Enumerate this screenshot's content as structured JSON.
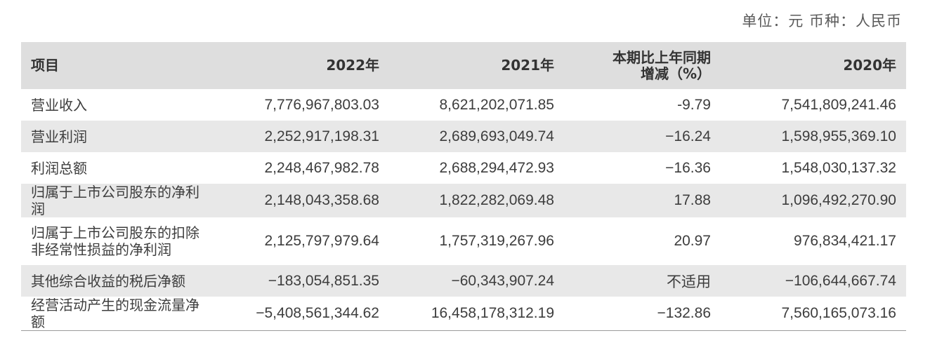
{
  "unit_note": "单位：元  币种：人民币",
  "table": {
    "headers": {
      "item": "项目",
      "y2022": "2022年",
      "y2021": "2021年",
      "change_line1": "本期比上年同期",
      "change_line2": "增减（%）",
      "y2020": "2020年"
    },
    "rows": [
      {
        "item": "营业收入",
        "y2022": "7,776,967,803.03",
        "y2021": "8,621,202,071.85",
        "change": "-9.79",
        "y2020": "7,541,809,241.46"
      },
      {
        "item": "营业利润",
        "y2022": "2,252,917,198.31",
        "y2021": "2,689,693,049.74",
        "change": "−16.24",
        "y2020": "1,598,955,369.10"
      },
      {
        "item": "利润总额",
        "y2022": "2,248,467,982.78",
        "y2021": "2,688,294,472.93",
        "change": "−16.36",
        "y2020": "1,548,030,137.32"
      },
      {
        "item": "归属于上市公司股东的净利润",
        "y2022": "2,148,043,358.68",
        "y2021": "1,822,282,069.48",
        "change": "17.88",
        "y2020": "1,096,492,270.90"
      },
      {
        "item": "归属于上市公司股东的扣除非经常性损益的净利润",
        "y2022": "2,125,797,979.64",
        "y2021": "1,757,319,267.96",
        "change": "20.97",
        "y2020": "976,834,421.17"
      },
      {
        "item": "其他综合收益的税后净额",
        "y2022": "−183,054,851.35",
        "y2021": "−60,343,907.24",
        "change": "不适用",
        "y2020": "−106,644,667.74"
      },
      {
        "item": "经营活动产生的现金流量净额",
        "y2022": "−5,408,561,344.62",
        "y2021": "16,458,178,312.19",
        "change": "−132.86",
        "y2020": "7,560,165,073.16"
      }
    ]
  },
  "colors": {
    "header_bg": "#dedede",
    "stripe_bg": "#e8e8e8",
    "text": "#3d3d3d"
  }
}
